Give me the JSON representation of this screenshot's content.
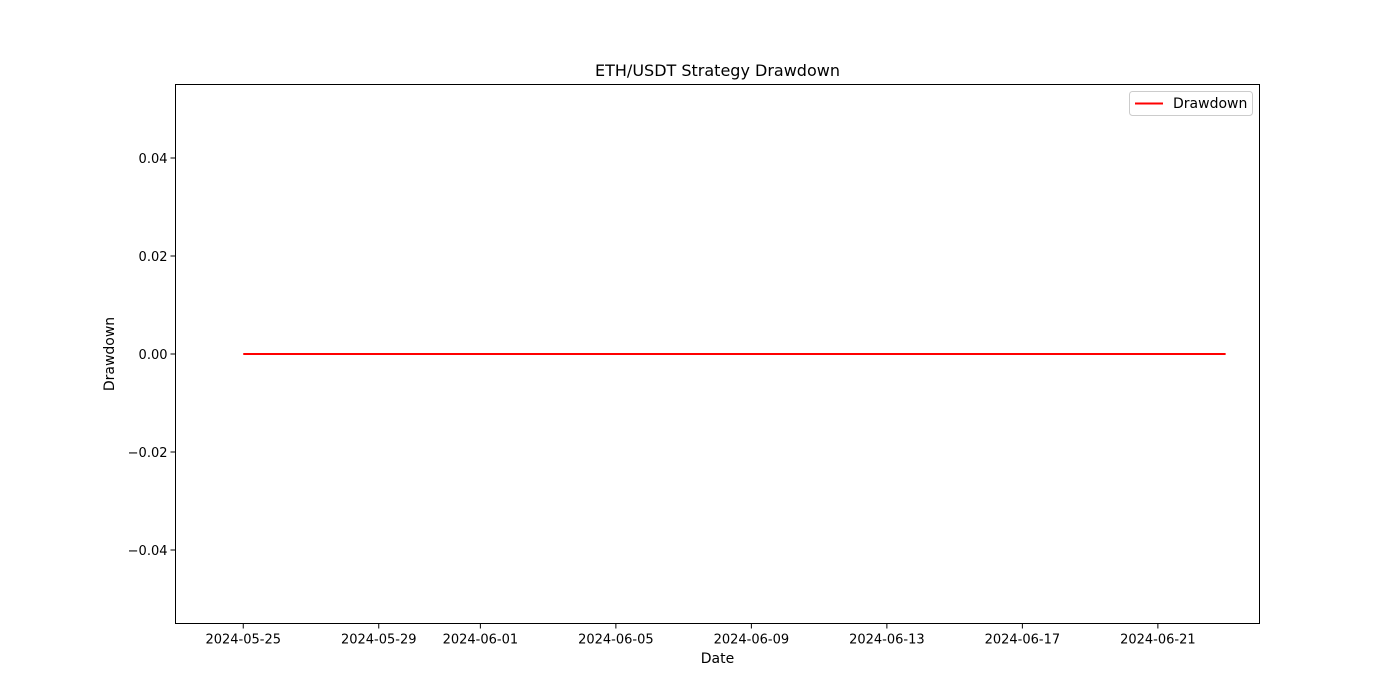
{
  "chart_data": {
    "type": "line",
    "title": "ETH/USDT Strategy Drawdown",
    "xlabel": "Date",
    "ylabel": "Drawdown",
    "x_ticks": [
      "2024-05-25",
      "2024-05-29",
      "2024-06-01",
      "2024-06-05",
      "2024-06-09",
      "2024-06-13",
      "2024-06-17",
      "2024-06-21"
    ],
    "y_ticks": [
      0.04,
      0.02,
      0.0,
      -0.02,
      -0.04
    ],
    "y_tick_labels": [
      "0.04",
      "0.02",
      "0.00",
      "−0.02",
      "−0.04"
    ],
    "xlim": [
      "2024-05-23",
      "2024-06-24"
    ],
    "ylim": [
      -0.055,
      0.055
    ],
    "grid": false,
    "legend": {
      "placement": "top-right"
    },
    "series": [
      {
        "name": "Drawdown",
        "color": "#ff0000",
        "x": [
          "2024-05-25",
          "2024-05-26",
          "2024-05-27",
          "2024-05-28",
          "2024-05-29",
          "2024-05-30",
          "2024-05-31",
          "2024-06-01",
          "2024-06-02",
          "2024-06-03",
          "2024-06-04",
          "2024-06-05",
          "2024-06-06",
          "2024-06-07",
          "2024-06-08",
          "2024-06-09",
          "2024-06-10",
          "2024-06-11",
          "2024-06-12",
          "2024-06-13",
          "2024-06-14",
          "2024-06-15",
          "2024-06-16",
          "2024-06-17",
          "2024-06-18",
          "2024-06-19",
          "2024-06-20",
          "2024-06-21",
          "2024-06-22",
          "2024-06-23"
        ],
        "values": [
          0,
          0,
          0,
          0,
          0,
          0,
          0,
          0,
          0,
          0,
          0,
          0,
          0,
          0,
          0,
          0,
          0,
          0,
          0,
          0,
          0,
          0,
          0,
          0,
          0,
          0,
          0,
          0,
          0,
          0
        ]
      }
    ]
  }
}
